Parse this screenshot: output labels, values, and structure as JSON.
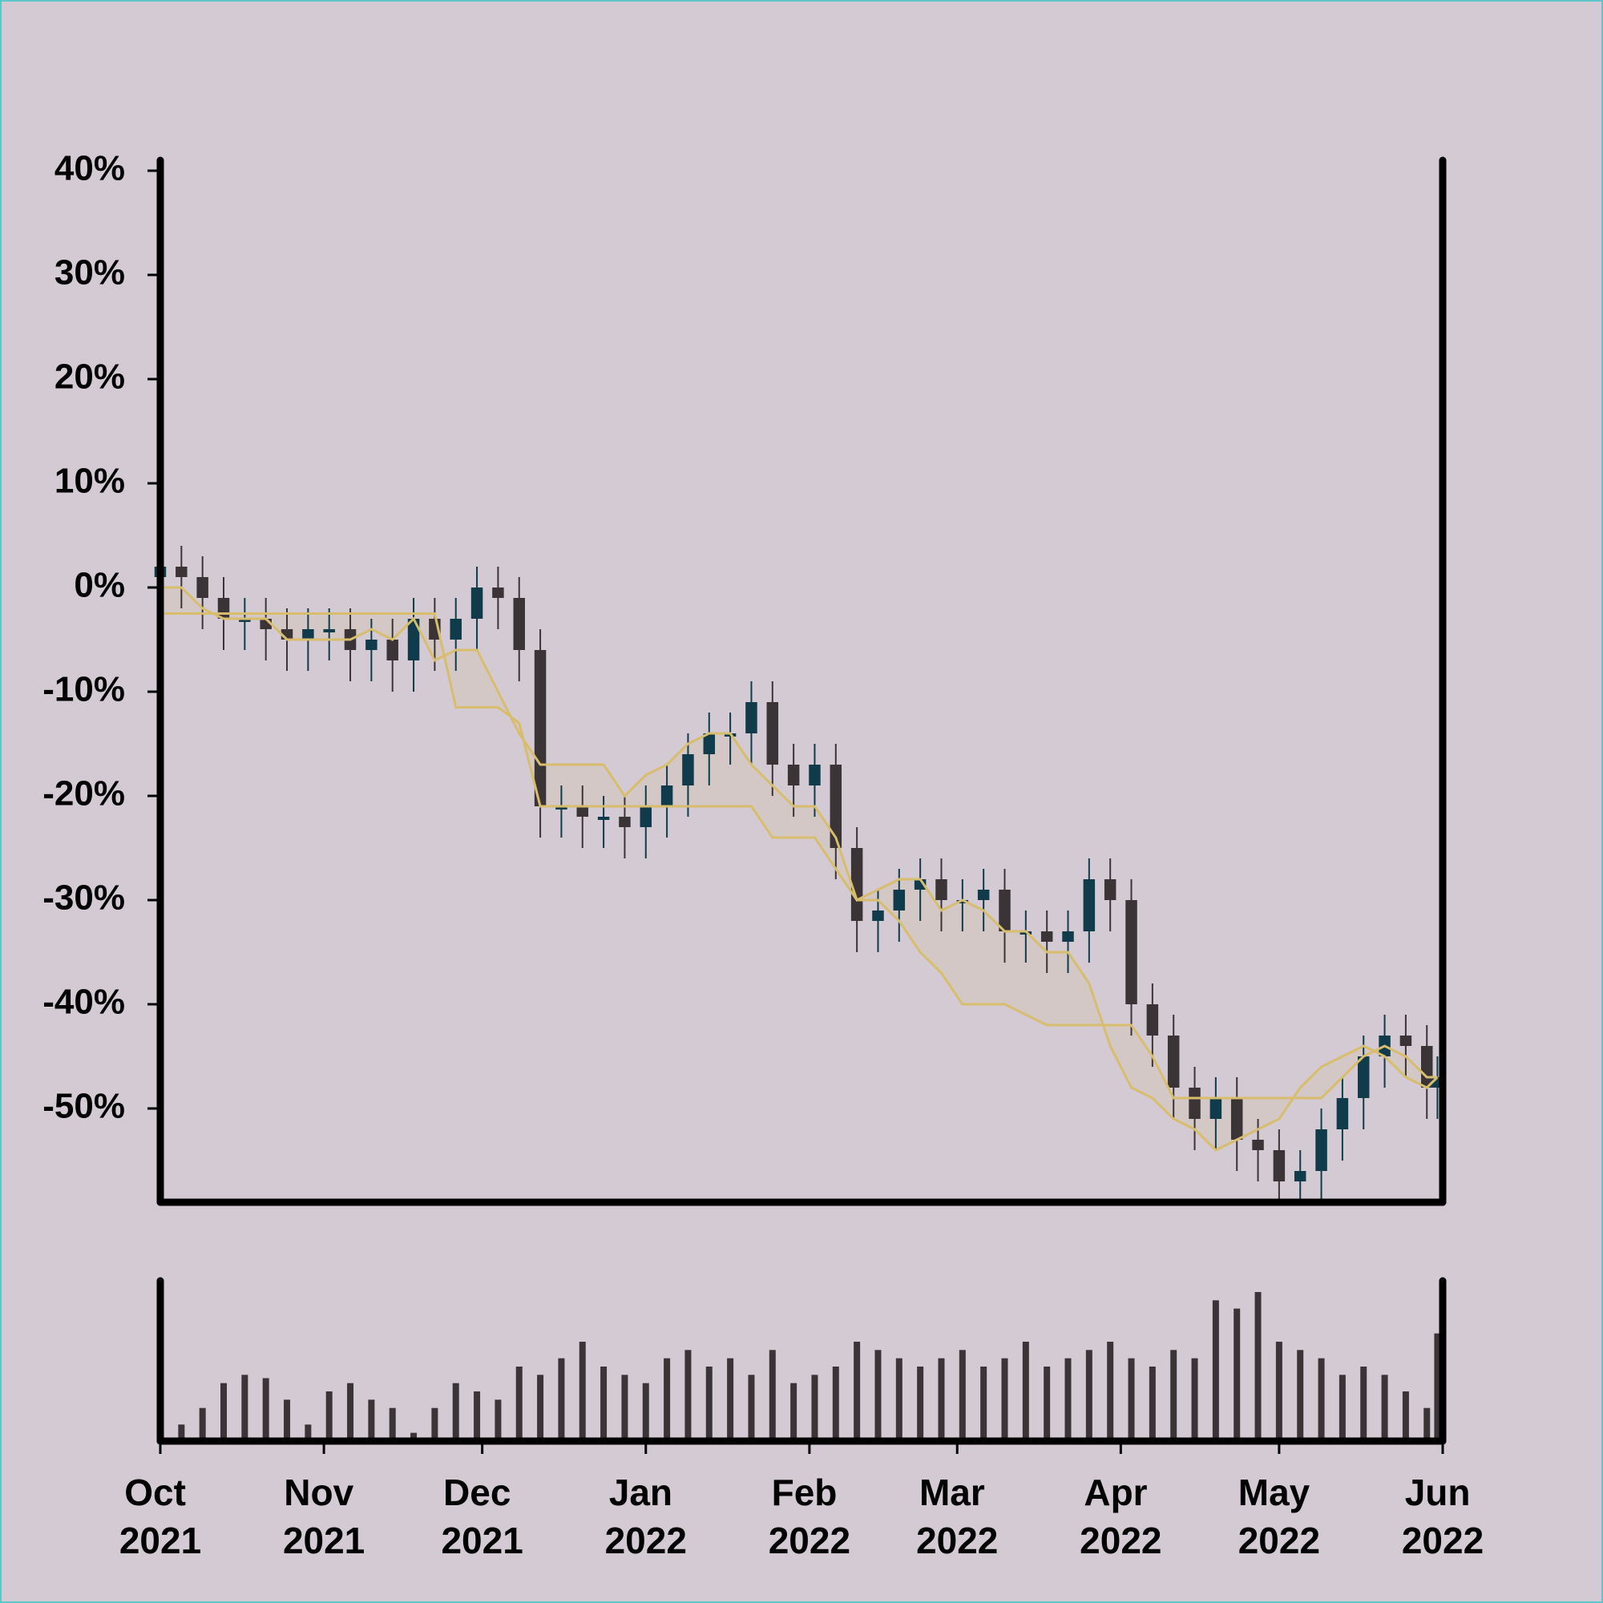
{
  "chart_data": {
    "type": "candlestick",
    "xlim": [
      0,
      243
    ],
    "xticks": [
      {
        "value": 0,
        "label": "Oct 2021"
      },
      {
        "value": 31,
        "label": "Nov 2021"
      },
      {
        "value": 61,
        "label": "Dec 2021"
      },
      {
        "value": 92,
        "label": "Jan 2022"
      },
      {
        "value": 123,
        "label": "Feb 2022"
      },
      {
        "value": 151,
        "label": "Mar 2022"
      },
      {
        "value": 182,
        "label": "Apr 2022"
      },
      {
        "value": 212,
        "label": "May 2022"
      },
      {
        "value": 243,
        "label": "Jun 2022"
      }
    ],
    "ylim": [
      -59,
      41
    ],
    "yticks": [
      {
        "value": 40,
        "label": "40%"
      },
      {
        "value": 30,
        "label": "30%"
      },
      {
        "value": 20,
        "label": "20%"
      },
      {
        "value": 10,
        "label": "10%"
      },
      {
        "value": 0,
        "label": "0%"
      },
      {
        "value": -10,
        "label": "-10%"
      },
      {
        "value": -20,
        "label": "-20%"
      },
      {
        "value": -30,
        "label": "-30%"
      },
      {
        "value": -40,
        "label": "-40%"
      },
      {
        "value": -50,
        "label": "-50%"
      }
    ],
    "x": [
      0,
      4,
      8,
      12,
      16,
      20,
      24,
      28,
      32,
      36,
      40,
      44,
      48,
      52,
      56,
      60,
      64,
      68,
      72,
      76,
      80,
      84,
      88,
      92,
      96,
      100,
      104,
      108,
      112,
      116,
      120,
      124,
      128,
      132,
      136,
      140,
      144,
      148,
      152,
      156,
      160,
      164,
      168,
      172,
      176,
      180,
      184,
      188,
      192,
      196,
      200,
      204,
      208,
      212,
      216,
      220,
      224,
      228,
      232,
      236,
      240,
      242
    ],
    "open": [
      1,
      2,
      1,
      -1,
      -3,
      -3,
      -4,
      -5,
      -4,
      -4,
      -6,
      -5,
      -7,
      -3,
      -5,
      -3,
      0,
      -1,
      -6,
      -21,
      -21,
      -22,
      -22,
      -23,
      -21,
      -19,
      -16,
      -14,
      -14,
      -11,
      -17,
      -19,
      -17,
      -25,
      -32,
      -31,
      -29,
      -28,
      -30,
      -30,
      -29,
      -33,
      -33,
      -34,
      -33,
      -28,
      -30,
      -40,
      -43,
      -48,
      -51,
      -49,
      -53,
      -54,
      -57,
      -56,
      -52,
      -49,
      -45,
      -43,
      -44,
      -48
    ],
    "high": [
      4,
      4,
      3,
      1,
      -1,
      -1,
      -2,
      -2,
      -2,
      -2,
      -3,
      -3,
      -1,
      -1,
      -1,
      2,
      2,
      1,
      -4,
      -19,
      -19,
      -20,
      -20,
      -19,
      -17,
      -14,
      -12,
      -12,
      -9,
      -9,
      -15,
      -15,
      -15,
      -23,
      -29,
      -27,
      -26,
      -26,
      -28,
      -27,
      -27,
      -31,
      -31,
      -31,
      -26,
      -26,
      -28,
      -38,
      -41,
      -46,
      -47,
      -47,
      -51,
      -52,
      -54,
      -50,
      -47,
      -43,
      -41,
      -41,
      -42,
      -45
    ],
    "low": [
      -2,
      -2,
      -4,
      -6,
      -6,
      -7,
      -8,
      -8,
      -7,
      -9,
      -9,
      -10,
      -10,
      -8,
      -8,
      -6,
      -4,
      -9,
      -24,
      -24,
      -25,
      -25,
      -26,
      -26,
      -24,
      -22,
      -19,
      -17,
      -17,
      -20,
      -22,
      -22,
      -28,
      -35,
      -35,
      -34,
      -32,
      -33,
      -33,
      -33,
      -36,
      -36,
      -37,
      -37,
      -36,
      -33,
      -43,
      -46,
      -51,
      -54,
      -54,
      -56,
      -57,
      -59,
      -59,
      -59,
      -55,
      -52,
      -48,
      -47,
      -51,
      -51
    ],
    "close": [
      2,
      1,
      -1,
      -3,
      -3,
      -4,
      -5,
      -4,
      -4,
      -6,
      -5,
      -7,
      -3,
      -5,
      -3,
      0,
      -1,
      -6,
      -21,
      -21,
      -22,
      -22,
      -23,
      -21,
      -19,
      -16,
      -14,
      -14,
      -11,
      -17,
      -19,
      -17,
      -25,
      -32,
      -31,
      -29,
      -28,
      -30,
      -30,
      -29,
      -33,
      -33,
      -34,
      -33,
      -28,
      -30,
      -40,
      -43,
      -48,
      -51,
      -49,
      -53,
      -54,
      -57,
      -56,
      -52,
      -49,
      -45,
      -43,
      -44,
      -48,
      -47
    ],
    "volume": [
      30,
      10,
      20,
      35,
      40,
      38,
      25,
      10,
      30,
      35,
      25,
      20,
      5,
      20,
      35,
      30,
      25,
      45,
      40,
      50,
      60,
      45,
      40,
      35,
      50,
      55,
      45,
      50,
      40,
      55,
      35,
      40,
      45,
      60,
      55,
      50,
      45,
      50,
      55,
      45,
      50,
      60,
      45,
      50,
      55,
      60,
      50,
      45,
      55,
      50,
      85,
      80,
      90,
      60,
      55,
      50,
      40,
      45,
      40,
      30,
      20,
      65
    ],
    "up_color": "#0f3b4a",
    "down_color": "#3b3437",
    "volume_color": "#3b3437",
    "series": [
      {
        "color": "#d8bd6d",
        "values": [
          0,
          0,
          -2,
          -3,
          -3,
          -3,
          -5,
          -5,
          -5,
          -5,
          -4,
          -5,
          -3,
          -7,
          -6,
          -6,
          -10,
          -14,
          -17,
          -17,
          -17,
          -17,
          -20,
          -18,
          -17,
          -15,
          -14,
          -14,
          -17,
          -19,
          -21,
          -21,
          -24,
          -30,
          -29,
          -28,
          -28,
          -31,
          -30,
          -31,
          -33,
          -33,
          -35,
          -35,
          -38,
          -44,
          -48,
          -49,
          -51,
          -52,
          -54,
          -53,
          -52,
          -51,
          -48,
          -46,
          -45,
          -44,
          -45,
          -47,
          -48,
          -47
        ]
      },
      {
        "color": "#d8bd6d",
        "values": [
          -2.5,
          -2.5,
          -2.5,
          -2.5,
          -2.5,
          -2.5,
          -2.5,
          -2.5,
          -2.5,
          -2.5,
          -2.5,
          -2.5,
          -2.5,
          -2.5,
          -11.5,
          -11.5,
          -11.5,
          -13,
          -21,
          -21,
          -21,
          -21,
          -21,
          -21,
          -21,
          -21,
          -21,
          -21,
          -21,
          -24,
          -24,
          -24,
          -27,
          -30,
          -30,
          -32,
          -35,
          -37,
          -40,
          -40,
          -40,
          -41,
          -42,
          -42,
          -42,
          -42,
          -42,
          -45,
          -49,
          -49,
          -49,
          -49,
          -49,
          -49,
          -49,
          -49,
          -47,
          -45,
          -44,
          -45,
          -47,
          -47
        ]
      }
    ]
  }
}
